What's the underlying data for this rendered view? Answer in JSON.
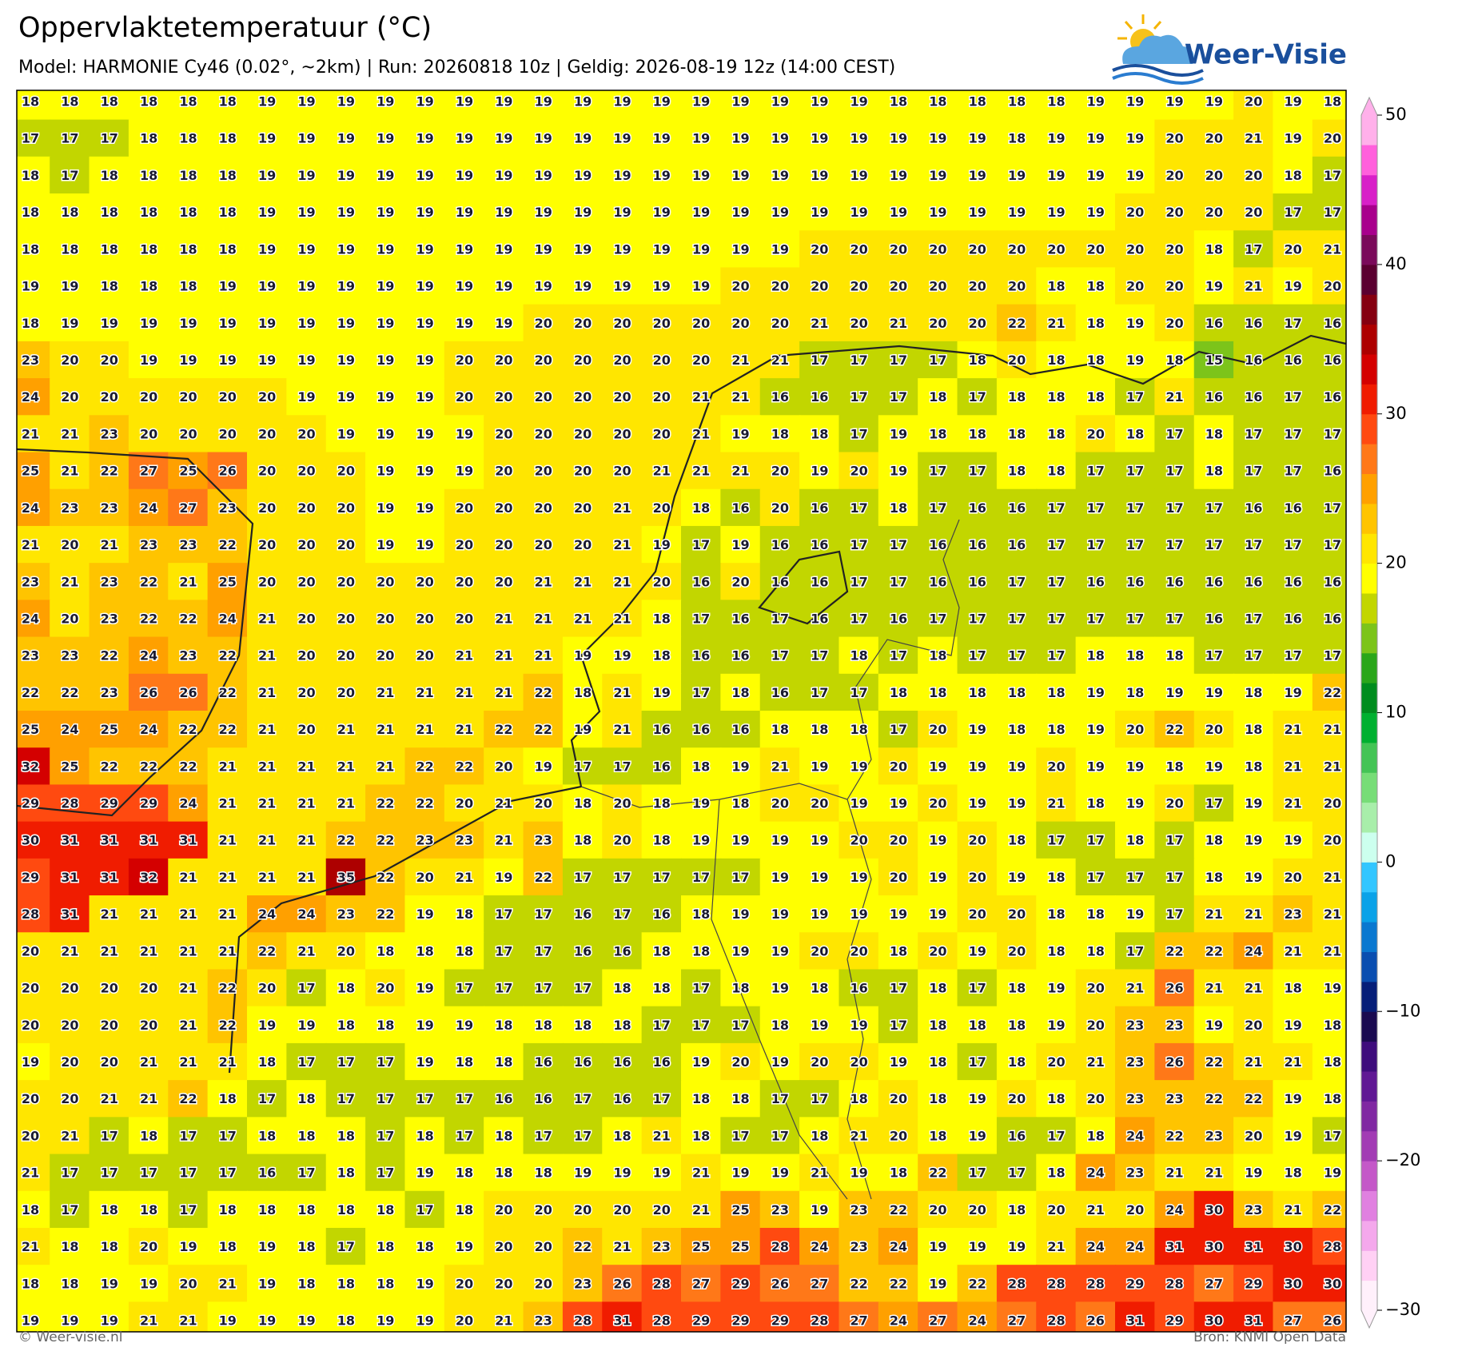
{
  "header": {
    "title": "Oppervlaktetemperatuur (°C)",
    "subtitle": "Model: HARMONIE Cy46 (0.02°, ~2km)  |  Run: 20260818 10z  |  Geldig: 2026-08-19 12z (14:00 CEST)",
    "brand": "Weer-Visie"
  },
  "map": {
    "grid": [
      [
        18,
        18,
        18,
        18,
        18,
        18,
        19,
        19,
        19,
        19,
        19,
        19,
        19,
        19,
        19,
        19,
        19,
        19,
        19,
        19,
        19,
        19,
        18,
        18,
        18,
        18,
        18,
        19,
        19,
        19,
        19,
        20,
        19,
        18
      ],
      [
        17,
        17,
        17,
        18,
        18,
        18,
        19,
        19,
        19,
        19,
        19,
        19,
        19,
        19,
        19,
        19,
        19,
        19,
        19,
        19,
        19,
        19,
        19,
        19,
        19,
        18,
        19,
        19,
        19,
        20,
        20,
        21,
        19,
        20
      ],
      [
        18,
        17,
        18,
        18,
        18,
        18,
        19,
        19,
        19,
        19,
        19,
        19,
        19,
        19,
        19,
        19,
        19,
        19,
        19,
        19,
        19,
        19,
        19,
        19,
        19,
        19,
        19,
        19,
        19,
        20,
        20,
        20,
        18,
        17
      ],
      [
        18,
        18,
        18,
        18,
        18,
        18,
        19,
        19,
        19,
        19,
        19,
        19,
        19,
        19,
        19,
        19,
        19,
        19,
        19,
        19,
        19,
        19,
        19,
        19,
        19,
        19,
        19,
        19,
        20,
        20,
        20,
        20,
        17,
        17
      ],
      [
        18,
        18,
        18,
        18,
        18,
        18,
        19,
        19,
        19,
        19,
        19,
        19,
        19,
        19,
        19,
        19,
        19,
        19,
        19,
        19,
        20,
        20,
        20,
        20,
        20,
        20,
        20,
        20,
        20,
        20,
        18,
        17,
        20,
        21
      ],
      [
        19,
        19,
        18,
        18,
        18,
        19,
        19,
        19,
        19,
        19,
        19,
        19,
        19,
        19,
        19,
        19,
        19,
        19,
        20,
        20,
        20,
        20,
        20,
        20,
        20,
        20,
        18,
        18,
        20,
        20,
        19,
        21,
        19,
        20
      ],
      [
        18,
        19,
        19,
        19,
        19,
        19,
        19,
        19,
        19,
        19,
        19,
        19,
        19,
        20,
        20,
        20,
        20,
        20,
        20,
        20,
        21,
        20,
        21,
        20,
        20,
        22,
        21,
        18,
        19,
        20,
        16,
        16,
        17,
        16
      ],
      [
        23,
        20,
        20,
        19,
        19,
        19,
        19,
        19,
        19,
        19,
        19,
        20,
        20,
        20,
        20,
        20,
        20,
        20,
        21,
        21,
        17,
        17,
        17,
        17,
        18,
        20,
        18,
        18,
        19,
        18,
        15,
        16,
        16,
        16
      ],
      [
        24,
        20,
        20,
        20,
        20,
        20,
        20,
        19,
        19,
        19,
        19,
        20,
        20,
        20,
        20,
        20,
        20,
        21,
        21,
        16,
        16,
        17,
        17,
        18,
        17,
        18,
        18,
        18,
        17,
        21,
        16,
        16,
        17,
        16
      ],
      [
        21,
        21,
        23,
        20,
        20,
        20,
        20,
        20,
        19,
        19,
        19,
        19,
        20,
        20,
        20,
        20,
        20,
        21,
        19,
        18,
        18,
        17,
        19,
        18,
        18,
        18,
        18,
        20,
        18,
        17,
        18,
        17,
        17,
        17
      ],
      [
        25,
        21,
        22,
        27,
        25,
        26,
        20,
        20,
        20,
        19,
        19,
        19,
        20,
        20,
        20,
        20,
        21,
        21,
        21,
        20,
        19,
        20,
        19,
        17,
        17,
        18,
        18,
        17,
        17,
        17,
        18,
        17,
        17,
        16
      ],
      [
        24,
        23,
        23,
        24,
        27,
        23,
        20,
        20,
        20,
        19,
        19,
        20,
        20,
        20,
        20,
        21,
        20,
        18,
        16,
        20,
        16,
        17,
        18,
        17,
        16,
        16,
        17,
        17,
        17,
        17,
        17,
        16,
        16,
        17
      ],
      [
        21,
        20,
        21,
        23,
        23,
        22,
        20,
        20,
        20,
        19,
        19,
        20,
        20,
        20,
        20,
        21,
        19,
        17,
        19,
        16,
        16,
        17,
        17,
        16,
        16,
        16,
        17,
        17,
        17,
        17,
        17,
        17,
        17,
        17
      ],
      [
        23,
        21,
        23,
        22,
        21,
        25,
        20,
        20,
        20,
        20,
        20,
        20,
        20,
        21,
        21,
        21,
        20,
        16,
        20,
        16,
        16,
        17,
        17,
        16,
        16,
        17,
        17,
        16,
        16,
        16,
        16,
        16,
        16,
        16
      ],
      [
        24,
        20,
        23,
        22,
        22,
        24,
        21,
        20,
        20,
        20,
        20,
        20,
        21,
        21,
        21,
        21,
        18,
        17,
        16,
        17,
        16,
        17,
        16,
        17,
        17,
        17,
        17,
        17,
        17,
        17,
        16,
        17,
        16,
        16
      ],
      [
        23,
        23,
        22,
        24,
        23,
        22,
        21,
        20,
        20,
        20,
        20,
        21,
        21,
        21,
        19,
        19,
        18,
        16,
        16,
        17,
        17,
        18,
        17,
        18,
        17,
        17,
        17,
        18,
        18,
        18,
        17,
        17,
        17,
        17
      ],
      [
        22,
        22,
        23,
        26,
        26,
        22,
        21,
        20,
        20,
        21,
        21,
        21,
        21,
        22,
        18,
        21,
        19,
        17,
        18,
        16,
        17,
        17,
        18,
        18,
        18,
        18,
        18,
        19,
        18,
        19,
        19,
        18,
        19,
        22
      ],
      [
        25,
        24,
        25,
        24,
        22,
        22,
        21,
        20,
        21,
        21,
        21,
        21,
        22,
        22,
        19,
        21,
        16,
        16,
        16,
        18,
        18,
        18,
        17,
        20,
        19,
        18,
        18,
        19,
        20,
        22,
        20,
        18,
        21,
        21
      ],
      [
        32,
        25,
        22,
        22,
        22,
        21,
        21,
        21,
        21,
        21,
        22,
        22,
        20,
        19,
        17,
        17,
        16,
        18,
        19,
        21,
        19,
        19,
        20,
        19,
        19,
        19,
        20,
        19,
        19,
        18,
        19,
        18,
        21,
        21
      ],
      [
        29,
        28,
        29,
        29,
        24,
        21,
        21,
        21,
        21,
        22,
        22,
        20,
        21,
        20,
        18,
        20,
        18,
        19,
        18,
        20,
        20,
        19,
        19,
        20,
        19,
        19,
        21,
        18,
        19,
        20,
        17,
        19,
        21,
        20
      ],
      [
        30,
        31,
        31,
        31,
        31,
        21,
        21,
        21,
        22,
        22,
        23,
        23,
        21,
        23,
        18,
        20,
        18,
        19,
        19,
        19,
        19,
        20,
        20,
        19,
        20,
        18,
        17,
        17,
        18,
        17,
        18,
        19,
        19,
        20
      ],
      [
        29,
        31,
        31,
        32,
        21,
        21,
        21,
        21,
        35,
        22,
        20,
        21,
        19,
        22,
        17,
        17,
        17,
        17,
        17,
        19,
        19,
        19,
        20,
        19,
        20,
        19,
        18,
        17,
        17,
        17,
        18,
        19,
        20,
        21
      ],
      [
        28,
        31,
        21,
        21,
        21,
        21,
        24,
        24,
        23,
        22,
        19,
        18,
        17,
        17,
        16,
        17,
        16,
        18,
        19,
        19,
        19,
        19,
        19,
        19,
        20,
        20,
        18,
        18,
        19,
        17,
        21,
        21,
        23,
        21
      ],
      [
        20,
        21,
        21,
        21,
        21,
        21,
        22,
        21,
        20,
        18,
        18,
        18,
        17,
        17,
        16,
        16,
        18,
        18,
        19,
        19,
        20,
        20,
        18,
        20,
        19,
        20,
        18,
        18,
        17,
        22,
        22,
        24,
        21,
        21
      ],
      [
        20,
        20,
        20,
        20,
        21,
        22,
        20,
        17,
        18,
        20,
        19,
        17,
        17,
        17,
        17,
        18,
        18,
        17,
        18,
        19,
        18,
        16,
        17,
        18,
        17,
        18,
        19,
        20,
        21,
        26,
        21,
        21,
        18,
        19
      ],
      [
        20,
        20,
        20,
        20,
        21,
        22,
        19,
        19,
        18,
        18,
        19,
        19,
        18,
        18,
        18,
        18,
        17,
        17,
        17,
        18,
        19,
        19,
        17,
        18,
        18,
        18,
        19,
        20,
        23,
        23,
        19,
        20,
        19,
        18
      ],
      [
        19,
        20,
        20,
        21,
        21,
        21,
        18,
        17,
        17,
        17,
        19,
        18,
        18,
        16,
        16,
        16,
        16,
        19,
        20,
        19,
        20,
        20,
        19,
        18,
        17,
        18,
        20,
        21,
        23,
        26,
        22,
        21,
        21,
        18
      ],
      [
        20,
        20,
        21,
        21,
        22,
        18,
        17,
        18,
        17,
        17,
        17,
        17,
        16,
        16,
        17,
        16,
        17,
        18,
        18,
        17,
        17,
        18,
        20,
        18,
        19,
        20,
        18,
        20,
        23,
        23,
        22,
        22,
        19,
        18
      ],
      [
        20,
        21,
        17,
        18,
        17,
        17,
        18,
        18,
        18,
        17,
        18,
        17,
        18,
        17,
        17,
        18,
        21,
        18,
        17,
        17,
        18,
        21,
        20,
        18,
        19,
        16,
        17,
        18,
        24,
        22,
        23,
        20,
        19,
        17
      ],
      [
        21,
        17,
        17,
        17,
        17,
        17,
        16,
        17,
        18,
        17,
        19,
        18,
        18,
        18,
        19,
        19,
        19,
        21,
        19,
        19,
        21,
        19,
        18,
        22,
        17,
        17,
        18,
        24,
        23,
        21,
        21,
        19,
        18,
        19
      ],
      [
        18,
        17,
        18,
        18,
        17,
        18,
        18,
        18,
        18,
        18,
        17,
        18,
        20,
        20,
        20,
        20,
        20,
        21,
        25,
        23,
        19,
        23,
        22,
        20,
        20,
        18,
        20,
        21,
        20,
        24,
        30,
        23,
        21,
        22
      ],
      [
        21,
        18,
        18,
        20,
        19,
        18,
        19,
        18,
        17,
        18,
        18,
        19,
        20,
        20,
        22,
        21,
        23,
        25,
        25,
        28,
        24,
        23,
        24,
        19,
        19,
        19,
        21,
        24,
        24,
        31,
        30,
        31,
        30,
        28
      ],
      [
        18,
        18,
        19,
        19,
        20,
        21,
        19,
        18,
        18,
        18,
        19,
        20,
        20,
        20,
        23,
        26,
        28,
        27,
        29,
        26,
        27,
        22,
        22,
        19,
        22,
        28,
        28,
        28,
        29,
        28,
        27,
        29,
        30,
        30
      ],
      [
        19,
        19,
        19,
        21,
        21,
        19,
        19,
        19,
        18,
        19,
        19,
        20,
        21,
        23,
        28,
        31,
        28,
        29,
        29,
        29,
        28,
        27,
        24,
        27,
        24,
        27,
        28,
        26,
        31,
        29,
        30,
        31,
        27,
        26
      ]
    ]
  },
  "colorbar": {
    "lim": [
      -30,
      50
    ],
    "ticks": [
      50,
      40,
      30,
      20,
      10,
      0,
      {
        "value": -10,
        "label": "−10"
      },
      {
        "value": -20,
        "label": "−20"
      },
      {
        "value": -30,
        "label": "−30"
      }
    ],
    "colors": [
      "#fff0fb",
      "#ffd0f4",
      "#f4a8ec",
      "#e080e0",
      "#c458c8",
      "#a23cb4",
      "#8028a2",
      "#601894",
      "#3e0c7c",
      "#1a0a50",
      "#061e78",
      "#0a4eb0",
      "#0a78d0",
      "#0aa2e8",
      "#33c6ff",
      "#ccffee",
      "#a8eeaa",
      "#77dd77",
      "#44c455",
      "#00b030",
      "#008c1e",
      "#2aa61a",
      "#7cc41a",
      "#c2d600",
      "#ffff00",
      "#ffe600",
      "#ffc400",
      "#ffa000",
      "#ff7818",
      "#ff4a10",
      "#f01c00",
      "#d40000",
      "#ad0000",
      "#850010",
      "#5a0030",
      "#7a0a5a",
      "#a8008c",
      "#d820c8",
      "#ff60dc",
      "#ffb0ea"
    ]
  },
  "footer": {
    "left": "© Weer-visie.nl",
    "right": "Bron: KNMI Open Data"
  }
}
